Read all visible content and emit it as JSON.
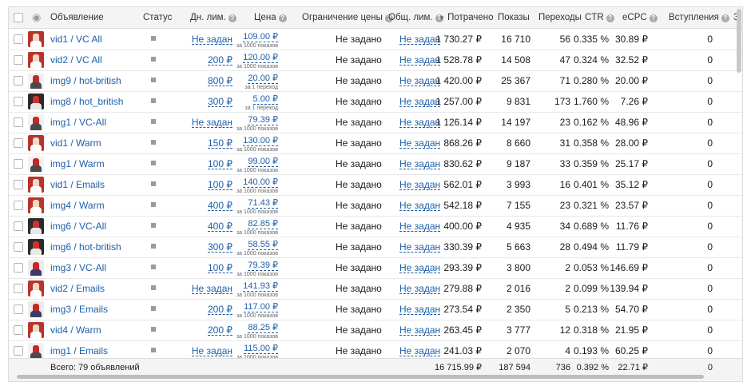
{
  "header": {
    "ad": "Объявление",
    "status": "Статус",
    "daily": "Дн. лим.",
    "price": "Цена",
    "price_limit": "Ограничение цены",
    "total_limit": "Общ. лим.",
    "spent": "Потрачено",
    "impressions": "Показы",
    "clicks": "Переходы",
    "ctr": "CTR",
    "ecpc": "eCPC",
    "joins": "Вступления",
    "cut": "З"
  },
  "rows": [
    {
      "name": "vid1 / VC All",
      "daily": "Не задан",
      "price": "109.00 ₽",
      "unit": "за 1000 показов",
      "limit": "Не задано",
      "total": "Не задан",
      "spent": "1 730.27 ₽",
      "imp": "16 710",
      "clicks": "56",
      "ctr": "0.335 %",
      "ecpc": "30.89 ₽",
      "joins": "0",
      "thumb": "person"
    },
    {
      "name": "vid2 / VC All",
      "daily": "200 ₽",
      "price": "120.00 ₽",
      "unit": "за 1000 показов",
      "limit": "Не задано",
      "total": "Не задан",
      "spent": "1 528.78 ₽",
      "imp": "14 508",
      "clicks": "47",
      "ctr": "0.324 %",
      "ecpc": "32.52 ₽",
      "joins": "0",
      "thumb": "person"
    },
    {
      "name": "img9 / hot-british",
      "daily": "800 ₽",
      "price": "20.00 ₽",
      "unit": "за 1 переход",
      "limit": "Не задано",
      "total": "Не задан",
      "spent": "1 420.00 ₽",
      "imp": "25 367",
      "clicks": "71",
      "ctr": "0.280 %",
      "ecpc": "20.00 ₽",
      "joins": "0",
      "thumb": "screen"
    },
    {
      "name": "img8 / hot_british",
      "daily": "300 ₽",
      "price": "5.00 ₽",
      "unit": "за 1 переход",
      "limit": "Не задано",
      "total": "Не задан",
      "spent": "1 257.00 ₽",
      "imp": "9 831",
      "clicks": "173",
      "ctr": "1.760 %",
      "ecpc": "7.26 ₽",
      "joins": "0",
      "thumb": "dark"
    },
    {
      "name": "img1 / VC-All",
      "daily": "Не задан",
      "price": "79.39 ₽",
      "unit": "за 1000 показов",
      "limit": "Не задано",
      "total": "Не задан",
      "spent": "1 126.14 ₽",
      "imp": "14 197",
      "clicks": "23",
      "ctr": "0.162 %",
      "ecpc": "48.96 ₽",
      "joins": "0",
      "thumb": "screen"
    },
    {
      "name": "vid1 / Warm",
      "daily": "150 ₽",
      "price": "130.00 ₽",
      "unit": "за 1000 показов",
      "limit": "Не задано",
      "total": "Не задан",
      "spent": "868.26 ₽",
      "imp": "8 660",
      "clicks": "31",
      "ctr": "0.358 %",
      "ecpc": "28.00 ₽",
      "joins": "0",
      "thumb": "person"
    },
    {
      "name": "img1 / Warm",
      "daily": "100 ₽",
      "price": "99.00 ₽",
      "unit": "за 1000 показов",
      "limit": "Не задано",
      "total": "Не задан",
      "spent": "830.62 ₽",
      "imp": "9 187",
      "clicks": "33",
      "ctr": "0.359 %",
      "ecpc": "25.17 ₽",
      "joins": "0",
      "thumb": "screen"
    },
    {
      "name": "vid1 / Emails",
      "daily": "100 ₽",
      "price": "140.00 ₽",
      "unit": "за 1000 показов",
      "limit": "Не задано",
      "total": "Не задан",
      "spent": "562.01 ₽",
      "imp": "3 993",
      "clicks": "16",
      "ctr": "0.401 %",
      "ecpc": "35.12 ₽",
      "joins": "0",
      "thumb": "person"
    },
    {
      "name": "img4 / Warm",
      "daily": "400 ₽",
      "price": "71.43 ₽",
      "unit": "за 1000 показов",
      "limit": "Не задано",
      "total": "Не задан",
      "spent": "542.18 ₽",
      "imp": "7 155",
      "clicks": "23",
      "ctr": "0.321 %",
      "ecpc": "23.57 ₽",
      "joins": "0",
      "thumb": "person"
    },
    {
      "name": "img6 / VC-All",
      "daily": "400 ₽",
      "price": "82.85 ₽",
      "unit": "за 1000 показов",
      "limit": "Не задано",
      "total": "Не задан",
      "spent": "400.00 ₽",
      "imp": "4 935",
      "clicks": "34",
      "ctr": "0.689 %",
      "ecpc": "11.76 ₽",
      "joins": "0",
      "thumb": "dark"
    },
    {
      "name": "img6 / hot-british",
      "daily": "300 ₽",
      "price": "58.55 ₽",
      "unit": "за 1000 показов",
      "limit": "Не задано",
      "total": "Не задан",
      "spent": "330.39 ₽",
      "imp": "5 663",
      "clicks": "28",
      "ctr": "0.494 %",
      "ecpc": "11.79 ₽",
      "joins": "0",
      "thumb": "dark"
    },
    {
      "name": "img3 / VC-All",
      "daily": "100 ₽",
      "price": "79.39 ₽",
      "unit": "за 1000 показов",
      "limit": "Не задано",
      "total": "Не задан",
      "spent": "293.39 ₽",
      "imp": "3 800",
      "clicks": "2",
      "ctr": "0.053 %",
      "ecpc": "146.69 ₽",
      "joins": "0",
      "thumb": "flag"
    },
    {
      "name": "vid2 / Emails",
      "daily": "Не задан",
      "price": "141.93 ₽",
      "unit": "за 1000 показов",
      "limit": "Не задано",
      "total": "Не задан",
      "spent": "279.88 ₽",
      "imp": "2 016",
      "clicks": "2",
      "ctr": "0.099 %",
      "ecpc": "139.94 ₽",
      "joins": "0",
      "thumb": "person"
    },
    {
      "name": "img3 / Emails",
      "daily": "200 ₽",
      "price": "117.00 ₽",
      "unit": "за 1000 показов",
      "limit": "Не задано",
      "total": "Не задан",
      "spent": "273.54 ₽",
      "imp": "2 350",
      "clicks": "5",
      "ctr": "0.213 %",
      "ecpc": "54.70 ₽",
      "joins": "0",
      "thumb": "flag"
    },
    {
      "name": "vid4 / Warm",
      "daily": "200 ₽",
      "price": "88.25 ₽",
      "unit": "за 1000 показов",
      "limit": "Не задано",
      "total": "Не задан",
      "spent": "263.45 ₽",
      "imp": "3 777",
      "clicks": "12",
      "ctr": "0.318 %",
      "ecpc": "21.95 ₽",
      "joins": "0",
      "thumb": "person"
    },
    {
      "name": "img1 / Emails",
      "daily": "Не задан",
      "price": "115.00 ₽",
      "unit": "за 1000 показов",
      "limit": "Не задано",
      "total": "Не задан",
      "spent": "241.03 ₽",
      "imp": "2 070",
      "clicks": "4",
      "ctr": "0.193 %",
      "ecpc": "60.25 ₽",
      "joins": "0",
      "thumb": "screen"
    }
  ],
  "footer": {
    "total": "Всего: 79 объявлений",
    "spent": "16 715.99 ₽",
    "imp": "187 594",
    "clicks": "736",
    "ctr": "0.392 %",
    "ecpc": "22.71 ₽",
    "joins": "0"
  },
  "colors": {
    "link": "#1f5fa8",
    "header_bg": "#f4f4f4",
    "border": "#dcdcdc"
  }
}
